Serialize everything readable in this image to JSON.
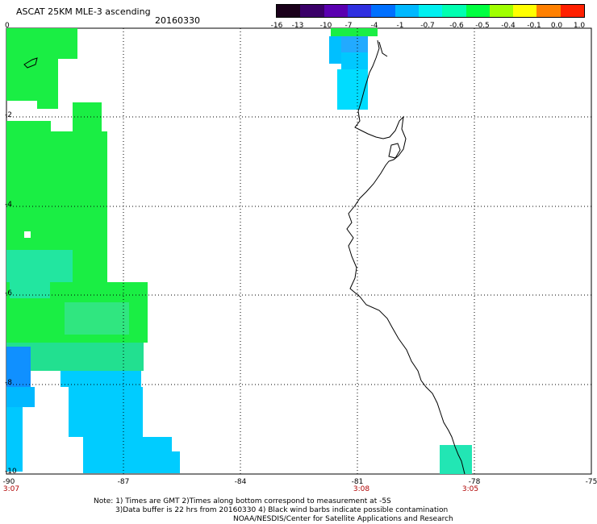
{
  "title": "ASCAT 25KM MLE-3 ascending",
  "date": "20160330",
  "legend": {
    "labels": [
      "-16",
      "-13",
      "-10",
      "-7",
      "-4",
      "-1",
      "-0.7",
      "-0.6",
      "-0.5",
      "-0.4",
      "-0.1",
      "0.0",
      "1.0"
    ],
    "colors": [
      "#1a001a",
      "#3a0068",
      "#5a00b0",
      "#3030e0",
      "#0070ff",
      "#00b8ff",
      "#00f0f0",
      "#00ffb0",
      "#00ff40",
      "#a0ff00",
      "#ffff00",
      "#ff8000",
      "#ff2000"
    ]
  },
  "axes": {
    "y_labels": [
      "0",
      "-2",
      "-4",
      "-6",
      "-8",
      "-10"
    ],
    "x_labels": [
      "-90",
      "-87",
      "-84",
      "-81",
      "-78",
      "-75"
    ],
    "time_labels": [
      {
        "x": "-90",
        "label": "3:07"
      },
      {
        "x": "-81",
        "label": "3:08"
      },
      {
        "x": "-78",
        "label": "3:05"
      }
    ]
  },
  "notes": [
    "Note: 1) Times are GMT 2)Times along bottom correspond to measurement at -5S",
    "3)Data buffer is 22 hrs from 20160330 4) Black wind barbs indicate possible contamination",
    "NOAA/NESDIS/Center for Satellite Applications and Research"
  ]
}
